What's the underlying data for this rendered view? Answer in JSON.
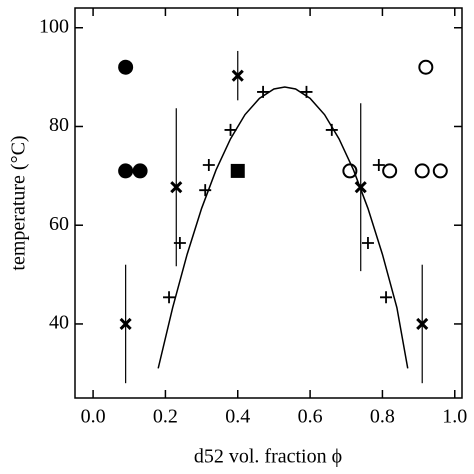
{
  "chart_data": {
    "type": "scatter",
    "xlabel": "d52 vol. fraction ϕ",
    "ylabel": "temperature (°C)",
    "xlim": [
      -0.05,
      1.02
    ],
    "ylim": [
      25,
      104
    ],
    "xticks": [
      {
        "value": 0,
        "label": "0.0"
      },
      0.2,
      0.4,
      0.6,
      0.8,
      {
        "value": 1,
        "label": "1.0"
      }
    ],
    "yticks": [
      40,
      60,
      80,
      100
    ],
    "series": [
      {
        "marker": "filled-circle",
        "color": "#000000",
        "x": [
          0.09,
          0.09,
          0.13
        ],
        "values": [
          92,
          71,
          71
        ]
      },
      {
        "marker": "open-circle",
        "color": "#000000",
        "x": [
          0.92,
          0.71,
          0.82,
          0.91,
          0.96
        ],
        "values": [
          92,
          71,
          71,
          71,
          71
        ]
      },
      {
        "marker": "filled-square",
        "color": "#000000",
        "x": [
          0.4
        ],
        "values": [
          71
        ]
      },
      {
        "marker": "cross",
        "color": "#000000",
        "x": [
          0.09,
          0.23,
          0.4,
          0.74,
          0.91
        ],
        "values": [
          40,
          67.7,
          90.3,
          67.7,
          40
        ],
        "errors": [
          12,
          16,
          5,
          17,
          12
        ]
      },
      {
        "marker": "plus",
        "color": "#000000",
        "x": [
          0.21,
          0.24,
          0.31,
          0.32,
          0.38,
          0.47,
          0.59,
          0.66,
          0.79,
          0.76,
          0.81
        ],
        "values": [
          45.4,
          56.4,
          67.1,
          72.2,
          79.3,
          87,
          87,
          79.3,
          72.2,
          56.4,
          45.4
        ]
      },
      {
        "marker": "line",
        "color": "#000000",
        "x": [
          0.18,
          0.22,
          0.26,
          0.3,
          0.34,
          0.38,
          0.42,
          0.46,
          0.5,
          0.53,
          0.56,
          0.6,
          0.64,
          0.68,
          0.72,
          0.76,
          0.8,
          0.84,
          0.87
        ],
        "values": [
          31,
          43.3,
          54.1,
          63.4,
          71.2,
          77.5,
          82.4,
          85.7,
          87.6,
          88,
          87.6,
          85.7,
          82.4,
          77.5,
          71.2,
          63.4,
          54.1,
          43.3,
          31
        ]
      }
    ]
  }
}
